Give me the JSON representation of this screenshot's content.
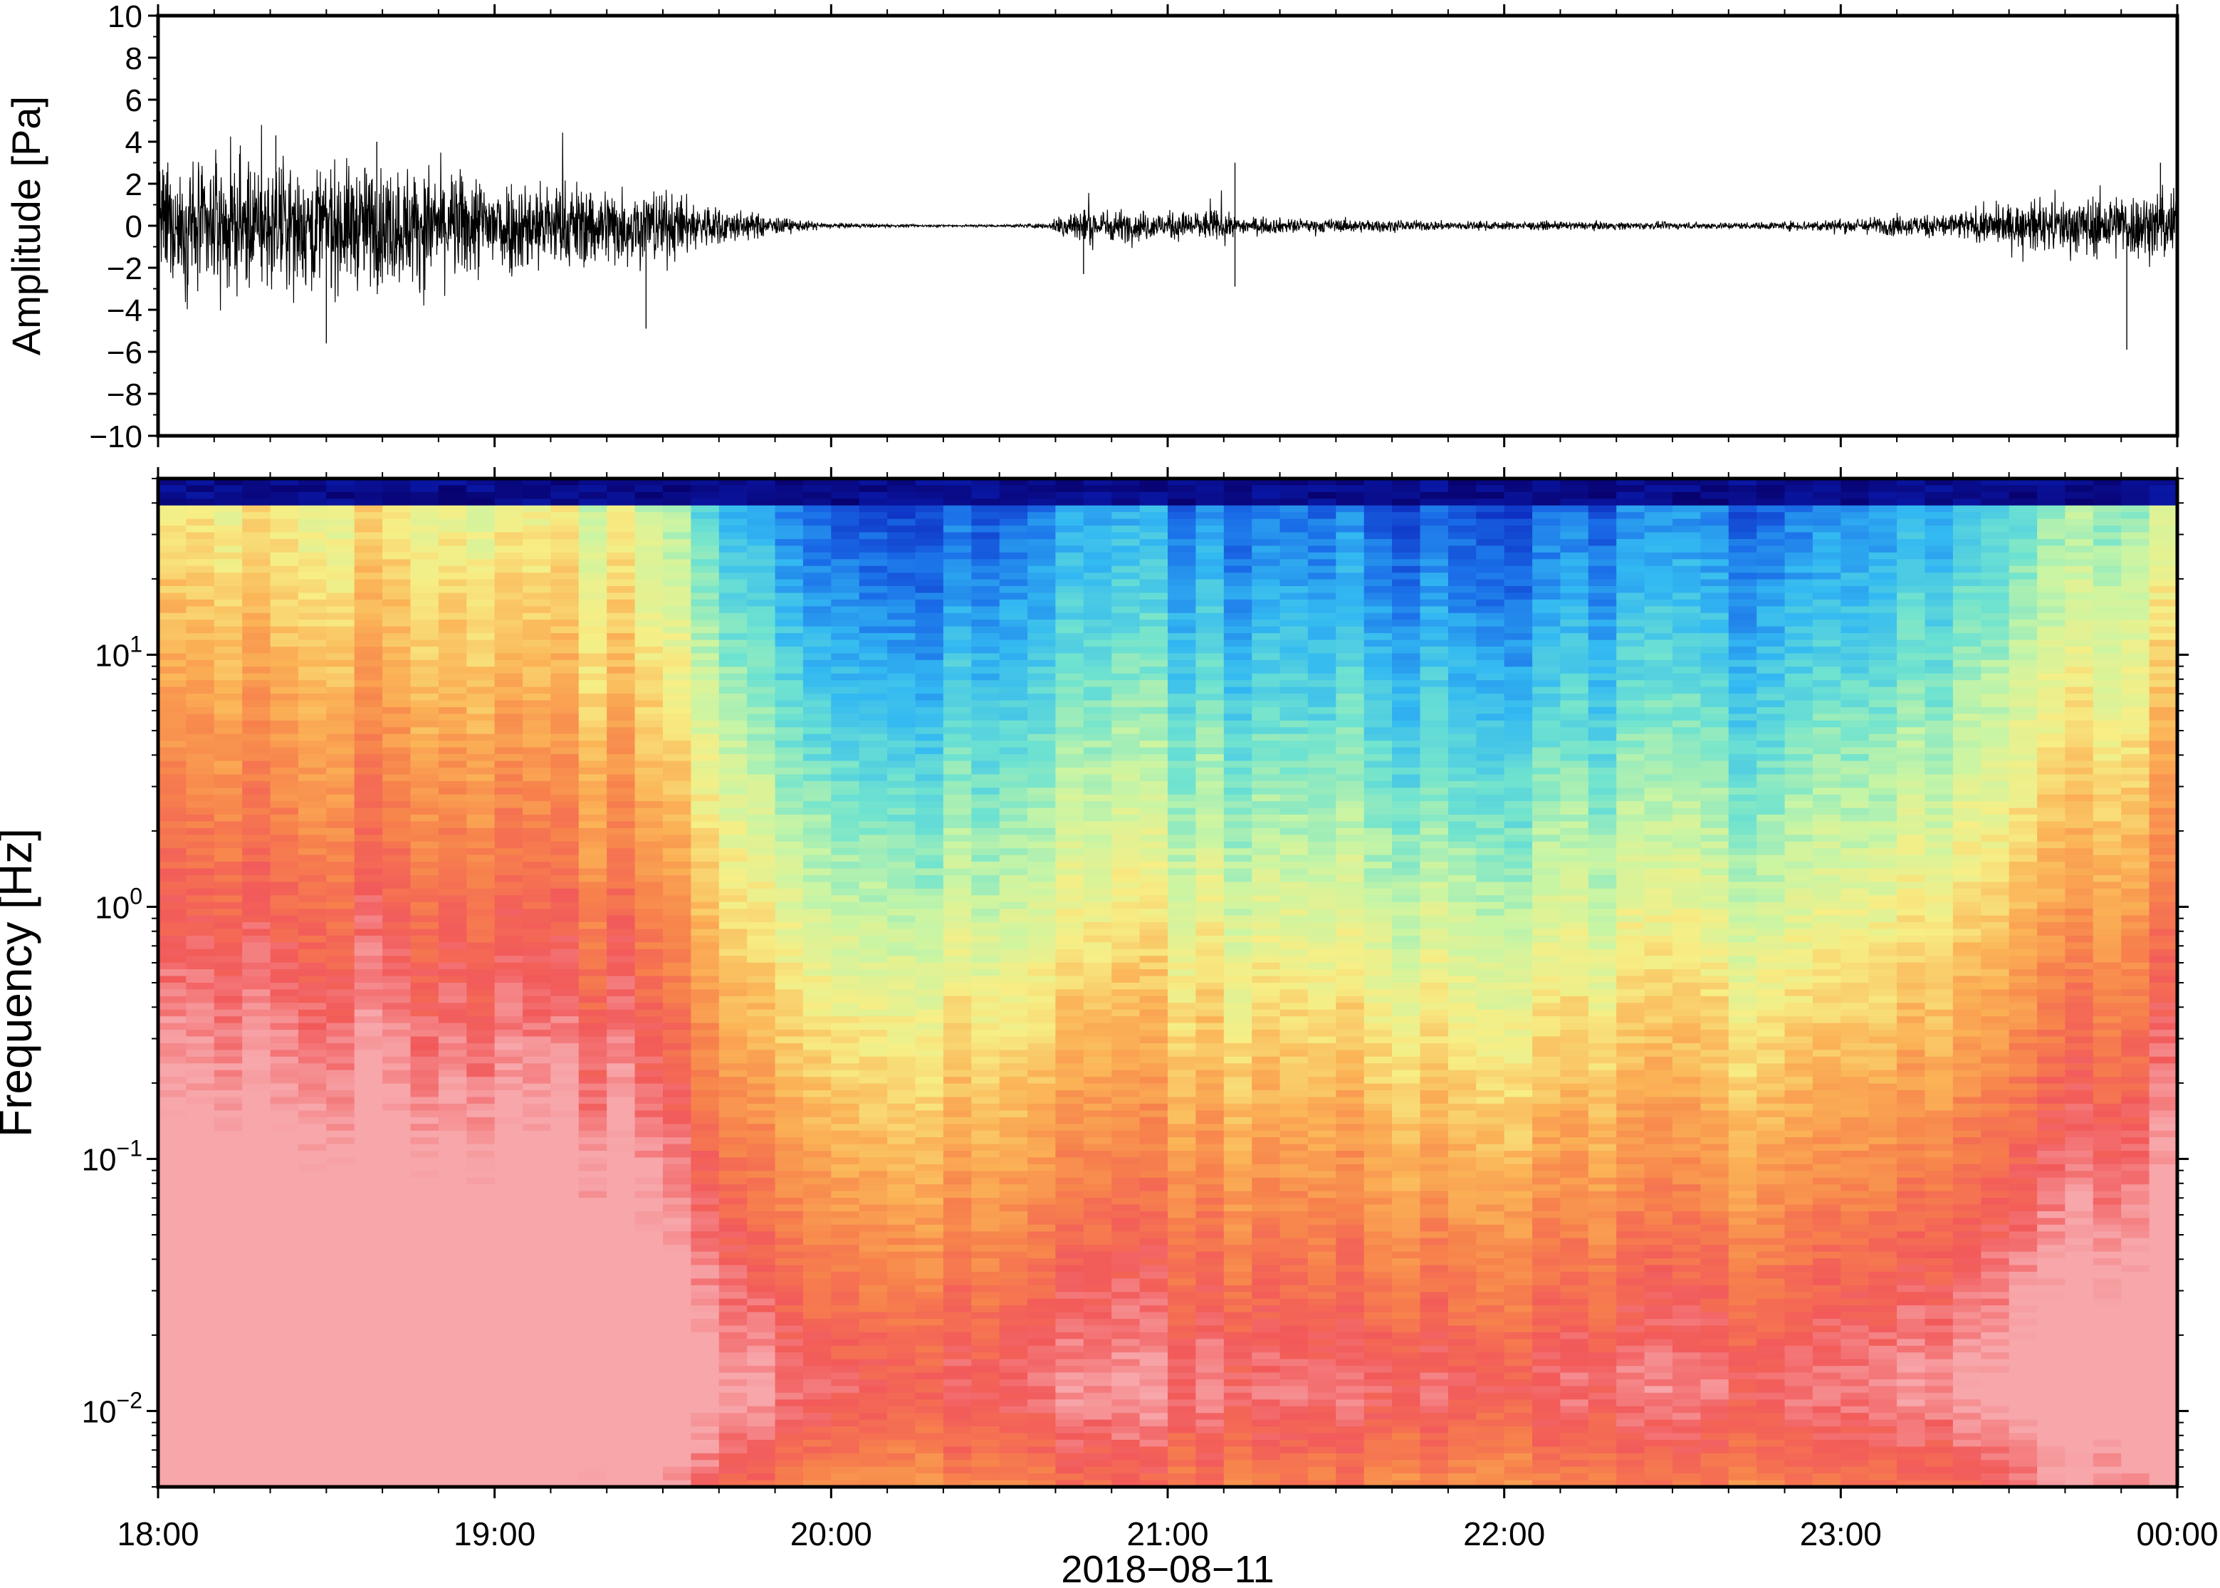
{
  "chart_data": [
    {
      "type": "line",
      "panel": "waveform",
      "ylabel": "Amplitude [Pa]",
      "ylim": [
        -10,
        10
      ],
      "yticks": [
        "10",
        "8",
        "6",
        "4",
        "2",
        "0",
        "−2",
        "−4",
        "−6",
        "−8",
        "−10"
      ],
      "ytick_values": [
        10,
        8,
        6,
        4,
        2,
        0,
        -2,
        -4,
        -6,
        -8,
        -10
      ],
      "xlim": [
        "2018-08-11 18:00",
        "2018-08-12 00:00"
      ],
      "grid": false,
      "series": [
        {
          "color": "#000000",
          "envelope_hours": [
            18.0,
            18.25,
            18.5,
            18.75,
            19.0,
            19.25,
            19.5,
            19.6,
            19.75,
            19.9,
            20.0,
            20.25,
            20.5,
            20.65,
            20.7,
            20.85,
            21.0,
            21.15,
            21.2,
            21.4,
            21.5,
            21.75,
            22.0,
            22.25,
            22.5,
            22.75,
            23.0,
            23.25,
            23.4,
            23.6,
            23.8,
            24.0
          ],
          "envelope_pa": [
            2.6,
            2.8,
            2.7,
            2.6,
            2.2,
            1.9,
            1.6,
            1.1,
            0.6,
            0.25,
            0.12,
            0.05,
            0.06,
            0.12,
            0.8,
            0.7,
            0.6,
            0.7,
            0.4,
            0.3,
            0.3,
            0.22,
            0.18,
            0.18,
            0.15,
            0.15,
            0.3,
            0.5,
            0.7,
            1.1,
            1.4,
            1.6
          ],
          "peaks": [
            {
              "hour": 18.5,
              "value_pa": -5.6
            },
            {
              "hour": 18.35,
              "value_pa": 4.3
            },
            {
              "hour": 18.65,
              "value_pa": 4.0
            },
            {
              "hour": 19.45,
              "value_pa": -4.9
            },
            {
              "hour": 20.75,
              "value_pa": -2.3
            },
            {
              "hour": 21.2,
              "value_pa": 3.0
            },
            {
              "hour": 21.2,
              "value_pa": -2.9
            },
            {
              "hour": 23.85,
              "value_pa": -5.9
            },
            {
              "hour": 23.95,
              "value_pa": 3.0
            }
          ]
        }
      ]
    },
    {
      "type": "heatmap",
      "panel": "spectrogram",
      "ylabel": "Frequency [Hz]",
      "y_scale": "log",
      "ylim": [
        0.005,
        50
      ],
      "ytick_values": [
        0.01,
        0.1,
        1,
        10
      ],
      "yticks": [
        {
          "base": "10",
          "exp": "−2"
        },
        {
          "base": "10",
          "exp": "−1"
        },
        {
          "base": "10",
          "exp": "0"
        },
        {
          "base": "10",
          "exp": "1"
        }
      ],
      "xlabel": "2018−08−11",
      "xticks": [
        "18:00",
        "19:00",
        "20:00",
        "21:00",
        "22:00",
        "23:00",
        "00:00"
      ],
      "xtick_hours": [
        18,
        19,
        20,
        21,
        22,
        23,
        24
      ],
      "x_minor_step_minutes": 10,
      "xlim": [
        "2018-08-11 18:00",
        "2018-08-12 00:00"
      ],
      "colormap": [
        "#08006b",
        "#0a1fb8",
        "#1a6de8",
        "#33b9f2",
        "#6fe3d0",
        "#c9f5a4",
        "#f7ee85",
        "#fbb356",
        "#f7834c",
        "#f25a5a",
        "#f7a7ab"
      ],
      "activity_hours": [
        18.0,
        18.5,
        19.0,
        19.5,
        19.6,
        19.8,
        20.0,
        20.25,
        20.5,
        20.65,
        20.8,
        21.0,
        21.25,
        21.5,
        21.75,
        22.0,
        22.25,
        22.5,
        22.75,
        23.0,
        23.25,
        23.5,
        23.75,
        24.0
      ],
      "activity_level": [
        0.92,
        0.95,
        0.9,
        0.84,
        0.65,
        0.5,
        0.35,
        0.3,
        0.3,
        0.4,
        0.48,
        0.44,
        0.38,
        0.4,
        0.33,
        0.33,
        0.34,
        0.38,
        0.35,
        0.4,
        0.5,
        0.62,
        0.72,
        0.8
      ],
      "grid": false
    }
  ]
}
